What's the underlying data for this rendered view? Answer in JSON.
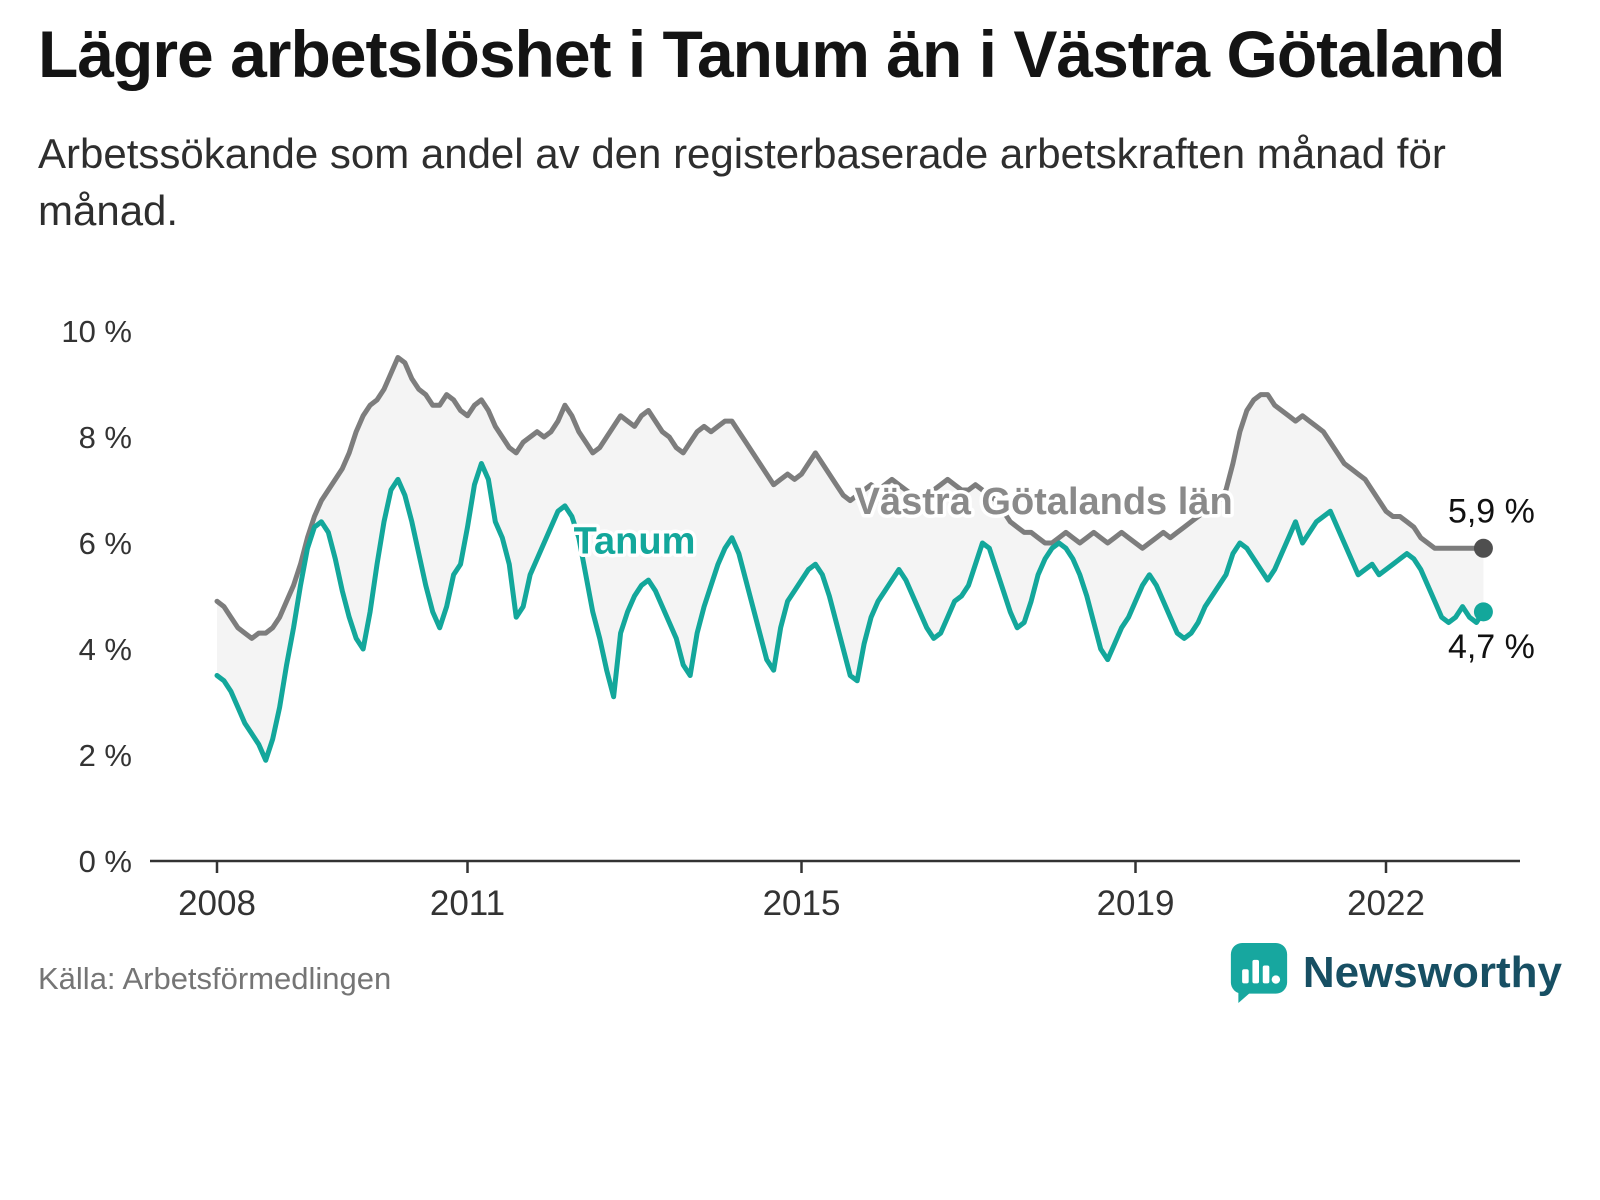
{
  "header": {
    "title": "Lägre arbetslöshet i Tanum än i Västra Götaland",
    "subtitle": "Arbetssökande som andel av den registerbaserade arbetskraften månad för månad."
  },
  "footer": {
    "source": "Källa: Arbetsförmedlingen",
    "brand": "Newsworthy"
  },
  "colors": {
    "tanum": "#13a79b",
    "county": "#7d7d7d",
    "county_dot": "#4f4f4f",
    "county_label": "#8a8a8a",
    "fill_between": "#f4f4f4",
    "axis": "#333333",
    "brand_icon": "#17a79f",
    "brand_text": "#174f63"
  },
  "chart_data": {
    "type": "line",
    "title": "Lägre arbetslöshet i Tanum än i Västra Götaland",
    "subtitle": "Arbetssökande som andel av den registerbaserade arbetskraften månad för månad.",
    "unit": "%",
    "x_start_year": 2008,
    "x_months_per_step": 1,
    "x_ticks": [
      2008,
      2011,
      2015,
      2019,
      2022
    ],
    "y_ticks": [
      0,
      2,
      4,
      6,
      8,
      10
    ],
    "y_tick_suffix": " %",
    "ylim": [
      0,
      10
    ],
    "grid": false,
    "legend": "inline-labels",
    "series": [
      {
        "name": "Västra Götalands län",
        "end_label": "5,9 %",
        "end_value": 5.9,
        "values": [
          4.9,
          4.8,
          4.6,
          4.4,
          4.3,
          4.2,
          4.3,
          4.3,
          4.4,
          4.6,
          4.9,
          5.2,
          5.6,
          6.1,
          6.5,
          6.8,
          7.0,
          7.2,
          7.4,
          7.7,
          8.1,
          8.4,
          8.6,
          8.7,
          8.9,
          9.2,
          9.5,
          9.4,
          9.1,
          8.9,
          8.8,
          8.6,
          8.6,
          8.8,
          8.7,
          8.5,
          8.4,
          8.6,
          8.7,
          8.5,
          8.2,
          8.0,
          7.8,
          7.7,
          7.9,
          8.0,
          8.1,
          8.0,
          8.1,
          8.3,
          8.6,
          8.4,
          8.1,
          7.9,
          7.7,
          7.8,
          8.0,
          8.2,
          8.4,
          8.3,
          8.2,
          8.4,
          8.5,
          8.3,
          8.1,
          8.0,
          7.8,
          7.7,
          7.9,
          8.1,
          8.2,
          8.1,
          8.2,
          8.3,
          8.3,
          8.1,
          7.9,
          7.7,
          7.5,
          7.3,
          7.1,
          7.2,
          7.3,
          7.2,
          7.3,
          7.5,
          7.7,
          7.5,
          7.3,
          7.1,
          6.9,
          6.8,
          6.9,
          7.0,
          7.1,
          7.0,
          7.1,
          7.2,
          7.1,
          7.0,
          6.9,
          6.8,
          6.9,
          7.0,
          7.1,
          7.2,
          7.1,
          7.0,
          7.0,
          7.1,
          7.0,
          6.9,
          6.8,
          6.6,
          6.4,
          6.3,
          6.2,
          6.2,
          6.1,
          6.0,
          6.0,
          6.1,
          6.2,
          6.1,
          6.0,
          6.1,
          6.2,
          6.1,
          6.0,
          6.1,
          6.2,
          6.1,
          6.0,
          5.9,
          6.0,
          6.1,
          6.2,
          6.1,
          6.2,
          6.3,
          6.4,
          6.5,
          6.6,
          6.7,
          6.8,
          7.0,
          7.5,
          8.1,
          8.5,
          8.7,
          8.8,
          8.8,
          8.6,
          8.5,
          8.4,
          8.3,
          8.4,
          8.3,
          8.2,
          8.1,
          7.9,
          7.7,
          7.5,
          7.4,
          7.3,
          7.2,
          7.0,
          6.8,
          6.6,
          6.5,
          6.5,
          6.4,
          6.3,
          6.1,
          6.0,
          5.9,
          5.9,
          5.9,
          5.9,
          5.9,
          5.9,
          5.9,
          5.9
        ]
      },
      {
        "name": "Tanum",
        "end_label": "4,7 %",
        "end_value": 4.7,
        "values": [
          3.5,
          3.4,
          3.2,
          2.9,
          2.6,
          2.4,
          2.2,
          1.9,
          2.3,
          2.9,
          3.7,
          4.4,
          5.2,
          5.9,
          6.3,
          6.4,
          6.2,
          5.7,
          5.1,
          4.6,
          4.2,
          4.0,
          4.7,
          5.6,
          6.4,
          7.0,
          7.2,
          6.9,
          6.4,
          5.8,
          5.2,
          4.7,
          4.4,
          4.8,
          5.4,
          5.6,
          6.3,
          7.1,
          7.5,
          7.2,
          6.4,
          6.1,
          5.6,
          4.6,
          4.8,
          5.4,
          5.7,
          6.0,
          6.3,
          6.6,
          6.7,
          6.5,
          6.1,
          5.4,
          4.7,
          4.2,
          3.6,
          3.1,
          4.3,
          4.7,
          5.0,
          5.2,
          5.3,
          5.1,
          4.8,
          4.5,
          4.2,
          3.7,
          3.5,
          4.3,
          4.8,
          5.2,
          5.6,
          5.9,
          6.1,
          5.8,
          5.3,
          4.8,
          4.3,
          3.8,
          3.6,
          4.4,
          4.9,
          5.1,
          5.3,
          5.5,
          5.6,
          5.4,
          5.0,
          4.5,
          4.0,
          3.5,
          3.4,
          4.1,
          4.6,
          4.9,
          5.1,
          5.3,
          5.5,
          5.3,
          5.0,
          4.7,
          4.4,
          4.2,
          4.3,
          4.6,
          4.9,
          5.0,
          5.2,
          5.6,
          6.0,
          5.9,
          5.5,
          5.1,
          4.7,
          4.4,
          4.5,
          4.9,
          5.4,
          5.7,
          5.9,
          6.0,
          5.9,
          5.7,
          5.4,
          5.0,
          4.5,
          4.0,
          3.8,
          4.1,
          4.4,
          4.6,
          4.9,
          5.2,
          5.4,
          5.2,
          4.9,
          4.6,
          4.3,
          4.2,
          4.3,
          4.5,
          4.8,
          5.0,
          5.2,
          5.4,
          5.8,
          6.0,
          5.9,
          5.7,
          5.5,
          5.3,
          5.5,
          5.8,
          6.1,
          6.4,
          6.0,
          6.2,
          6.4,
          6.5,
          6.6,
          6.3,
          6.0,
          5.7,
          5.4,
          5.5,
          5.6,
          5.4,
          5.5,
          5.6,
          5.7,
          5.8,
          5.7,
          5.5,
          5.2,
          4.9,
          4.6,
          4.5,
          4.6,
          4.8,
          4.6,
          4.5,
          4.7
        ]
      }
    ],
    "annotations": [
      {
        "text": "Tanum",
        "x": 2013.0,
        "y": 5.8,
        "series": "tanum",
        "color": "#13a79b"
      },
      {
        "text": "Västra Götalands län",
        "x": 2017.9,
        "y": 6.55,
        "series": "county",
        "color": "#8a8a8a"
      }
    ]
  }
}
